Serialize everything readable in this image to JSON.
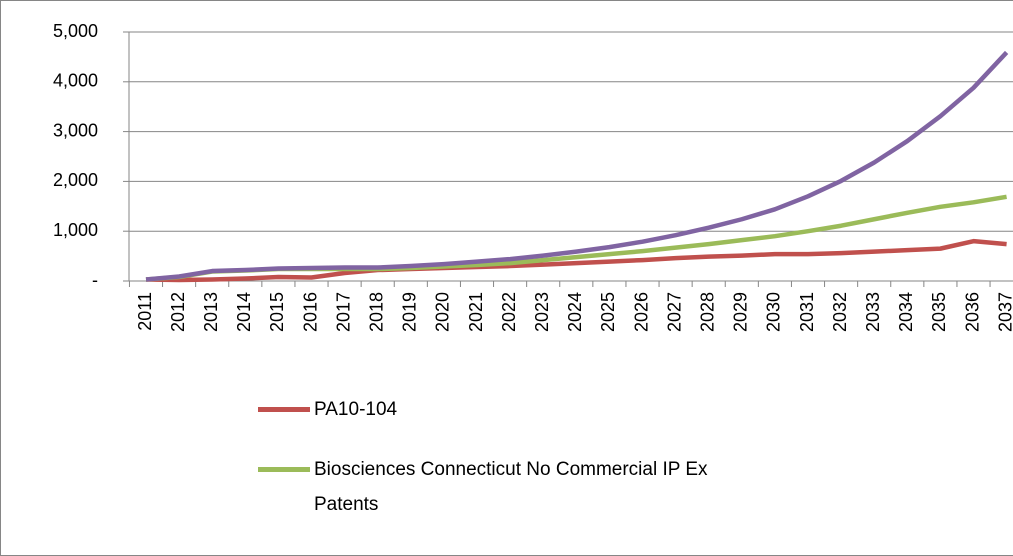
{
  "chart_data": {
    "type": "line",
    "categories": [
      "2011",
      "2012",
      "2013",
      "2014",
      "2015",
      "2016",
      "2017",
      "2018",
      "2019",
      "2020",
      "2021",
      "2022",
      "2023",
      "2024",
      "2025",
      "2026",
      "2027",
      "2028",
      "2029",
      "2030",
      "2031",
      "2032",
      "2033",
      "2034",
      "2035",
      "2036",
      "2037"
    ],
    "series": [
      {
        "name": "PA10-104",
        "color": "#c0504d",
        "values": [
          30,
          20,
          30,
          50,
          80,
          70,
          160,
          220,
          240,
          260,
          280,
          300,
          330,
          360,
          390,
          420,
          460,
          490,
          510,
          540,
          540,
          560,
          590,
          620,
          650,
          800,
          740
        ]
      },
      {
        "name": "Biosciences Connecticut No Commercial IP Ex Patents",
        "color": "#9bbb59",
        "values": [
          30,
          80,
          190,
          210,
          240,
          240,
          240,
          240,
          260,
          290,
          320,
          360,
          420,
          480,
          540,
          600,
          670,
          740,
          820,
          900,
          1000,
          1110,
          1240,
          1370,
          1490,
          1580,
          1690
        ]
      },
      {
        "color": "#8064a2",
        "values": [
          30,
          90,
          200,
          220,
          250,
          260,
          270,
          270,
          300,
          340,
          390,
          440,
          510,
          590,
          680,
          790,
          920,
          1070,
          1240,
          1440,
          1700,
          2010,
          2380,
          2810,
          3310,
          3880,
          4590
        ]
      }
    ],
    "ylim": [
      0,
      5000
    ],
    "yticks": [
      {
        "value": 0,
        "label": "-"
      },
      {
        "value": 1000,
        "label": "1,000"
      },
      {
        "value": 2000,
        "label": "2,000"
      },
      {
        "value": 3000,
        "label": "3,000"
      },
      {
        "value": 4000,
        "label": "4,000"
      },
      {
        "value": 5000,
        "label": "5,000"
      }
    ],
    "grid": true
  }
}
